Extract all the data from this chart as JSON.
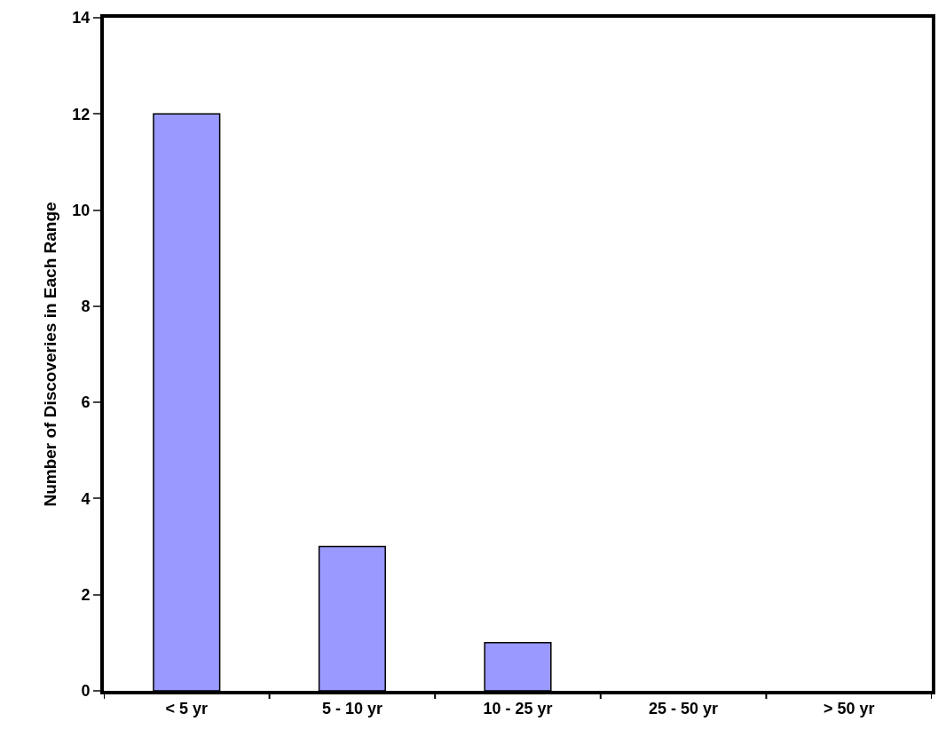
{
  "chart_data": {
    "type": "bar",
    "ylabel": "Number of Discoveries in Each Range",
    "categories": [
      "< 5 yr",
      "5 - 10 yr",
      "10 - 25 yr",
      "25 - 50 yr",
      "> 50 yr"
    ],
    "values": [
      12,
      3,
      1,
      0,
      0
    ],
    "color": "#9999ff",
    "ylim": [
      0,
      14
    ],
    "yticks": [
      0,
      2,
      4,
      6,
      8,
      10,
      12,
      14
    ]
  }
}
